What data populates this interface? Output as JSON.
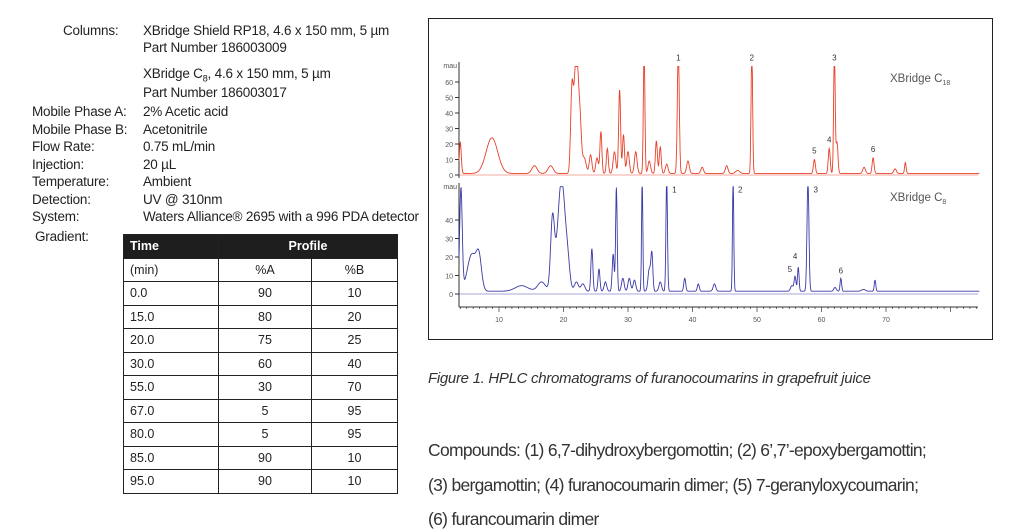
{
  "conditions": {
    "columns_label": "Columns:",
    "column1_line1": "XBridge Shield RP18, 4.6 x 150 mm, 5 µm",
    "column1_line2": "Part Number 186003009",
    "column2_prefix": "XBridge C",
    "column2_sub": "8",
    "column2_suffix": ", 4.6 x 150 mm, 5 µm",
    "column2_line2": "Part Number 186003017",
    "rows": [
      {
        "label": "Mobile Phase A:",
        "value": "2% Acetic acid"
      },
      {
        "label": "Mobile Phase B:",
        "value": "Acetonitrile"
      },
      {
        "label": "Flow Rate:",
        "value": "0.75 mL/min"
      },
      {
        "label": "Injection:",
        "value": "20 µL"
      },
      {
        "label": "Temperature:",
        "value": "Ambient"
      },
      {
        "label": "Detection:",
        "value": "UV @ 310nm"
      },
      {
        "label": "System:",
        "value": "Waters Alliance® 2695 with a 996 PDA detector"
      }
    ],
    "gradient_label": "Gradient:"
  },
  "gradient_table": {
    "header_time": "Time",
    "header_profile": "Profile",
    "sub_time": "(min)",
    "sub_a": "%A",
    "sub_b": "%B",
    "rows": [
      [
        "0.0",
        "90",
        "10"
      ],
      [
        "15.0",
        "80",
        "20"
      ],
      [
        "20.0",
        "75",
        "25"
      ],
      [
        "30.0",
        "60",
        "40"
      ],
      [
        "55.0",
        "30",
        "70"
      ],
      [
        "67.0",
        "5",
        "95"
      ],
      [
        "80.0",
        "5",
        "95"
      ],
      [
        "85.0",
        "90",
        "10"
      ],
      [
        "95.0",
        "90",
        "10"
      ]
    ]
  },
  "chart_data": {
    "type": "line",
    "x_ticks": [
      10,
      20,
      30,
      40,
      50,
      60,
      70
    ],
    "xlim": [
      3.8,
      84.5
    ],
    "panels": [
      {
        "name_prefix": "XBridge C",
        "name_sub": "18",
        "y_unit": "mau",
        "ylim": [
          0,
          70
        ],
        "y_ticks": [
          0,
          10,
          20,
          30,
          40,
          50,
          60
        ],
        "color": "#e8402a",
        "baseline": 1,
        "peaks": [
          [
            4.0,
            20,
            0.15
          ],
          [
            8.9,
            23,
            0.9
          ],
          [
            15.5,
            5,
            0.4
          ],
          [
            18,
            5,
            0.4
          ],
          [
            21.3,
            48,
            0.2
          ],
          [
            22.0,
            80,
            0.35
          ],
          [
            22.6,
            20,
            0.2
          ],
          [
            23.2,
            10,
            0.3
          ],
          [
            24.2,
            12,
            0.2
          ],
          [
            25.2,
            10,
            0.2
          ],
          [
            25.8,
            27,
            0.15
          ],
          [
            26.8,
            16,
            0.15
          ],
          [
            27.9,
            14,
            0.2
          ],
          [
            28.7,
            54,
            0.15
          ],
          [
            29.3,
            25,
            0.15
          ],
          [
            30.0,
            14,
            0.2
          ],
          [
            31.2,
            14,
            0.2
          ],
          [
            32.5,
            80,
            0.12
          ],
          [
            33.3,
            8,
            0.2
          ],
          [
            34.4,
            21,
            0.15
          ],
          [
            35.0,
            17,
            0.15
          ],
          [
            36.0,
            6,
            0.2
          ],
          [
            37.8,
            80,
            0.15
          ],
          [
            39.3,
            8,
            0.2
          ],
          [
            41.5,
            4,
            0.2
          ],
          [
            45.3,
            5,
            0.2
          ],
          [
            47,
            2,
            0.3
          ],
          [
            49.2,
            80,
            0.12
          ],
          [
            58.9,
            9,
            0.15
          ],
          [
            61.2,
            16,
            0.15
          ],
          [
            62.0,
            80,
            0.12
          ],
          [
            62.4,
            20,
            0.15
          ],
          [
            66.6,
            4,
            0.2
          ],
          [
            68.0,
            10,
            0.15
          ],
          [
            71.4,
            3,
            0.2
          ],
          [
            73.0,
            7,
            0.12
          ]
        ],
        "peak_labels": [
          {
            "label": "1",
            "t": 37.8,
            "v": 74
          },
          {
            "label": "2",
            "t": 49.2,
            "v": 74
          },
          {
            "label": "3",
            "t": 62.0,
            "v": 74
          },
          {
            "label": "4",
            "t": 61.2,
            "v": 21
          },
          {
            "label": "5",
            "t": 58.9,
            "v": 14
          },
          {
            "label": "6",
            "t": 68.0,
            "v": 15
          }
        ]
      },
      {
        "name_prefix": "XBridge C",
        "name_sub": "8",
        "y_unit": "mau",
        "ylim": [
          -10,
          58
        ],
        "y_ticks": [
          0,
          10,
          20,
          30,
          40
        ],
        "color": "#3a3aa8",
        "baseline": 1.5,
        "peaks": [
          [
            4.1,
            55,
            0.2
          ],
          [
            5.8,
            20,
            0.7
          ],
          [
            6.9,
            16,
            0.4
          ],
          [
            13.5,
            3,
            1.0
          ],
          [
            16.6,
            5,
            0.6
          ],
          [
            18.3,
            38,
            0.3
          ],
          [
            19.7,
            60,
            0.6
          ],
          [
            20.7,
            8,
            0.3
          ],
          [
            22,
            5,
            0.3
          ],
          [
            23,
            4,
            0.3
          ],
          [
            24.4,
            23,
            0.15
          ],
          [
            25.5,
            12,
            0.15
          ],
          [
            26.5,
            5,
            0.2
          ],
          [
            27.7,
            20,
            0.15
          ],
          [
            28.2,
            56,
            0.12
          ],
          [
            29.2,
            7,
            0.2
          ],
          [
            30.2,
            7,
            0.2
          ],
          [
            31.0,
            6,
            0.2
          ],
          [
            32.2,
            60,
            0.1
          ],
          [
            33.3,
            12,
            0.2
          ],
          [
            33.7,
            20,
            0.15
          ],
          [
            35.0,
            5,
            0.2
          ],
          [
            36.0,
            60,
            0.12
          ],
          [
            38.8,
            7,
            0.15
          ],
          [
            40.9,
            4,
            0.15
          ],
          [
            43.4,
            4,
            0.2
          ],
          [
            46.3,
            60,
            0.1
          ],
          [
            55.4,
            3,
            0.2
          ],
          [
            55.9,
            8,
            0.15
          ],
          [
            56.4,
            13,
            0.12
          ],
          [
            57.9,
            60,
            0.15
          ],
          [
            62.1,
            2,
            0.2
          ],
          [
            63.0,
            7,
            0.12
          ],
          [
            66.5,
            1,
            0.3
          ],
          [
            68.3,
            6,
            0.12
          ]
        ],
        "peak_labels": [
          {
            "label": "1",
            "t": 37.2,
            "v": 55
          },
          {
            "label": "2",
            "t": 47.4,
            "v": 55
          },
          {
            "label": "3",
            "t": 59.1,
            "v": 55
          },
          {
            "label": "4",
            "t": 55.9,
            "v": 19
          },
          {
            "label": "5",
            "t": 55.1,
            "v": 12
          },
          {
            "label": "6",
            "t": 63.0,
            "v": 11
          }
        ]
      }
    ]
  },
  "caption": "Figure 1.  HPLC chromatograms of furanocoumarins in grapefruit juice",
  "compounds": [
    "Compounds: (1) 6,7-dihydroxybergomottin; (2) 6’,7’-epoxybergamottin;",
    "(3) bergamottin; (4) furanocoumarin dimer; (5) 7-geranyloxycoumarin;",
    "(6) furancoumarin dimer"
  ]
}
